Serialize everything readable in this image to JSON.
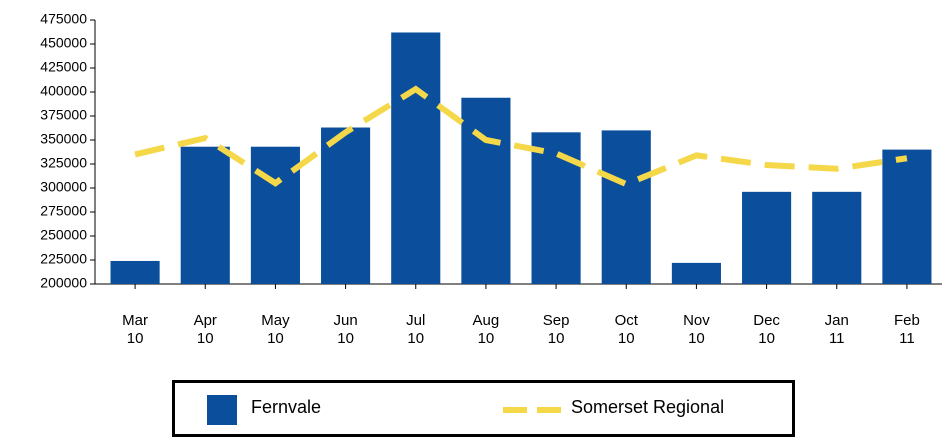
{
  "chart_data": {
    "type": "bar_line",
    "categories": [
      "Mar 10",
      "Apr 10",
      "May 10",
      "Jun 10",
      "Jul 10",
      "Aug 10",
      "Sep 10",
      "Oct 10",
      "Nov 10",
      "Dec 10",
      "Jan 11",
      "Feb 11"
    ],
    "series": [
      {
        "name": "Fernvale",
        "type": "bar",
        "color": "#0b4f9c",
        "values": [
          224000,
          343000,
          343000,
          363000,
          462000,
          394000,
          358000,
          360000,
          222000,
          296000,
          296000,
          340000
        ]
      },
      {
        "name": "Somerset Regional",
        "type": "line",
        "color": "#f5d84a",
        "values": [
          335000,
          352000,
          305000,
          358000,
          403000,
          350000,
          336000,
          304000,
          334000,
          324000,
          320000,
          331000
        ]
      }
    ],
    "ylim": [
      200000,
      475000
    ],
    "yticks": [
      200000,
      225000,
      250000,
      275000,
      300000,
      325000,
      350000,
      375000,
      400000,
      425000,
      450000,
      475000
    ],
    "grid": false,
    "legend": "bottom"
  }
}
